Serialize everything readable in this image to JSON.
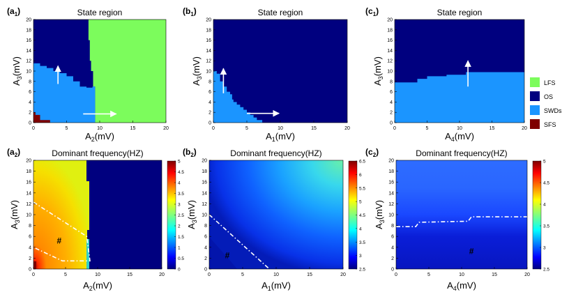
{
  "chart_data": [
    {
      "id": "a1",
      "type": "heatmap",
      "panel_label": "a",
      "panel_sub": "1",
      "title": "State region",
      "xlabel_base": "A",
      "xlabel_sub": "2",
      "xlabel_unit": "(mV)",
      "ylabel_base": "A",
      "ylabel_sub": "3",
      "ylabel_unit": "(mV)",
      "xlim": [
        0,
        20
      ],
      "ylim": [
        0,
        20
      ],
      "xticks": [
        0,
        5,
        10,
        15,
        20
      ],
      "yticks": [
        0,
        2,
        4,
        6,
        8,
        10,
        12,
        14,
        16,
        18,
        20
      ],
      "regions": [
        {
          "state": "LFS",
          "polygon": [
            [
              9.3,
              0
            ],
            [
              20,
              0
            ],
            [
              20,
              20
            ],
            [
              8.3,
              20
            ],
            [
              8.3,
              16
            ],
            [
              8.5,
              16
            ],
            [
              8.5,
              12
            ],
            [
              8.7,
              12
            ],
            [
              8.7,
              10
            ],
            [
              9.0,
              10
            ],
            [
              9.0,
              7
            ],
            [
              9.3,
              7
            ]
          ]
        },
        {
          "state": "SWDs",
          "polygon": [
            [
              0,
              0
            ],
            [
              9.3,
              0
            ],
            [
              9.3,
              7
            ],
            [
              8.9,
              7
            ],
            [
              8.9,
              6.8
            ],
            [
              8,
              6.8
            ],
            [
              8,
              7
            ],
            [
              7,
              7
            ],
            [
              7,
              8
            ],
            [
              6,
              8
            ],
            [
              6,
              9
            ],
            [
              5,
              9
            ],
            [
              5,
              9.6
            ],
            [
              4,
              9.6
            ],
            [
              4,
              10
            ],
            [
              3,
              10
            ],
            [
              3,
              10.6
            ],
            [
              2,
              10.6
            ],
            [
              2,
              11
            ],
            [
              1,
              11
            ],
            [
              1,
              11.5
            ],
            [
              0,
              11.5
            ]
          ]
        },
        {
          "state": "SFS",
          "polygon": [
            [
              0,
              0
            ],
            [
              2.5,
              0
            ],
            [
              2.5,
              0.5
            ],
            [
              1,
              0.5
            ],
            [
              1,
              1.5
            ],
            [
              0.3,
              1.5
            ],
            [
              0.3,
              2
            ],
            [
              0,
              2
            ]
          ]
        }
      ],
      "arrows": [
        {
          "from": [
            3.7,
            7.5
          ],
          "to": [
            3.7,
            11
          ]
        },
        {
          "from": [
            7.5,
            1.7
          ],
          "to": [
            12.5,
            1.7
          ]
        }
      ]
    },
    {
      "id": "b1",
      "type": "heatmap",
      "panel_label": "b",
      "panel_sub": "1",
      "title": "State region",
      "xlabel_base": "A",
      "xlabel_sub": "1",
      "xlabel_unit": "(mV)",
      "ylabel_base": "A",
      "ylabel_sub": "3",
      "ylabel_unit": "(mV)",
      "xlim": [
        0,
        20
      ],
      "ylim": [
        0,
        20
      ],
      "xticks": [
        0,
        5,
        10,
        15,
        20
      ],
      "yticks": [
        0,
        2,
        4,
        6,
        8,
        10,
        12,
        14,
        16,
        18,
        20
      ],
      "regions": [
        {
          "state": "SWDs",
          "polygon": [
            [
              0,
              0
            ],
            [
              7.3,
              0
            ],
            [
              7.3,
              0.5
            ],
            [
              6.5,
              0.5
            ],
            [
              6.5,
              1
            ],
            [
              6,
              1
            ],
            [
              6,
              1.5
            ],
            [
              5.5,
              1.5
            ],
            [
              5.5,
              2
            ],
            [
              5,
              2
            ],
            [
              5,
              2.5
            ],
            [
              4.5,
              2.5
            ],
            [
              4.5,
              3
            ],
            [
              4,
              3
            ],
            [
              4,
              3.5
            ],
            [
              3.5,
              3.5
            ],
            [
              3.5,
              4
            ],
            [
              3,
              4
            ],
            [
              3,
              4.5
            ],
            [
              2.8,
              4.5
            ],
            [
              2.8,
              5.5
            ],
            [
              2.5,
              5.5
            ],
            [
              2.5,
              6
            ],
            [
              2,
              6
            ],
            [
              2,
              7
            ],
            [
              1.5,
              7
            ],
            [
              1.5,
              8
            ],
            [
              1,
              8
            ],
            [
              1,
              9.5
            ],
            [
              0.5,
              9.5
            ],
            [
              0.5,
              10
            ],
            [
              0,
              10
            ]
          ]
        }
      ],
      "arrows": [
        {
          "from": [
            1.5,
            5.7
          ],
          "to": [
            1.5,
            10.5
          ]
        },
        {
          "from": [
            5,
            1.8
          ],
          "to": [
            9.8,
            1.8
          ]
        }
      ]
    },
    {
      "id": "c1",
      "type": "heatmap",
      "panel_label": "c",
      "panel_sub": "1",
      "title": "State region",
      "xlabel_base": "A",
      "xlabel_sub": "4",
      "xlabel_unit": "(mV)",
      "ylabel_base": "A",
      "ylabel_sub": "3",
      "ylabel_unit": "(mV)",
      "xlim": [
        0,
        20
      ],
      "ylim": [
        0,
        20
      ],
      "xticks": [
        0,
        5,
        10,
        15,
        20
      ],
      "yticks": [
        0,
        2,
        4,
        6,
        8,
        10,
        12,
        14,
        16,
        18,
        20
      ],
      "regions": [
        {
          "state": "SWDs",
          "polygon": [
            [
              0,
              0
            ],
            [
              20,
              0
            ],
            [
              20,
              9.8
            ],
            [
              11,
              9.8
            ],
            [
              11,
              9.3
            ],
            [
              8,
              9.3
            ],
            [
              8,
              9
            ],
            [
              5,
              9
            ],
            [
              5,
              8.5
            ],
            [
              3.5,
              8.5
            ],
            [
              3.5,
              7.8
            ],
            [
              0,
              7.8
            ]
          ]
        }
      ],
      "arrows": [
        {
          "from": [
            11.3,
            7
          ],
          "to": [
            11.3,
            12
          ]
        }
      ]
    },
    {
      "id": "a2",
      "type": "heatmap",
      "panel_label": "a",
      "panel_sub": "2",
      "title": "Dominant frequency(HZ)",
      "xlabel_base": "A",
      "xlabel_sub": "2",
      "xlabel_unit": "(mV)",
      "ylabel_base": "A",
      "ylabel_sub": "3",
      "ylabel_unit": "(mV)",
      "xlim": [
        0,
        20
      ],
      "ylim": [
        0,
        20
      ],
      "xticks": [
        0,
        5,
        10,
        15,
        20
      ],
      "yticks": [
        0,
        2,
        4,
        6,
        8,
        10,
        12,
        14,
        16,
        18,
        20
      ],
      "colorbar": {
        "min": 0,
        "max": 5,
        "ticks": [
          "0",
          "0.5",
          "1",
          "1.5",
          "2",
          "2.5",
          "3",
          "3.5",
          "4",
          "4.5",
          "5"
        ]
      },
      "boundary_x": 8.3,
      "hotspot": {
        "x": 0.3,
        "y": 0.6,
        "value": 4.8
      },
      "dashed_boundary": [
        [
          0,
          12.3
        ],
        [
          8.3,
          6
        ],
        [
          8.8,
          1.5
        ],
        [
          4.5,
          1.5
        ],
        [
          0,
          4
        ]
      ],
      "marker": {
        "text": "#",
        "x": 4,
        "y": 5.2
      }
    },
    {
      "id": "b2",
      "type": "heatmap",
      "panel_label": "b",
      "panel_sub": "2",
      "title": "Dominant frequency(HZ)",
      "xlabel_base": "A",
      "xlabel_sub": "1",
      "xlabel_unit": "(mV)",
      "ylabel_base": "A",
      "ylabel_sub": "3",
      "ylabel_unit": "(mV)",
      "xlim": [
        0,
        20
      ],
      "ylim": [
        0,
        20
      ],
      "xticks": [
        0,
        5,
        10,
        15,
        20
      ],
      "yticks": [
        0,
        2,
        4,
        6,
        8,
        10,
        12,
        14,
        16,
        18,
        20
      ],
      "colorbar": {
        "min": 2.5,
        "max": 6.5,
        "ticks": [
          "2.5",
          "3",
          "3.5",
          "4",
          "4.5",
          "5",
          "5.5",
          "6",
          "6.5"
        ]
      },
      "dashed_boundary": [
        [
          0,
          10
        ],
        [
          9,
          0
        ]
      ],
      "marker": {
        "text": "#",
        "x": 2.7,
        "y": 2.5
      }
    },
    {
      "id": "c2",
      "type": "heatmap",
      "panel_label": "c",
      "panel_sub": "2",
      "title": "Dominant frequency(HZ)",
      "xlabel_base": "A",
      "xlabel_sub": "4",
      "xlabel_unit": "(mV)",
      "ylabel_base": "A",
      "ylabel_sub": "3",
      "ylabel_unit": "(mV)",
      "xlim": [
        0,
        20
      ],
      "ylim": [
        0,
        20
      ],
      "xticks": [
        0,
        5,
        10,
        15,
        20
      ],
      "yticks": [
        0,
        2,
        4,
        6,
        8,
        10,
        12,
        14,
        16,
        18,
        20
      ],
      "colorbar": {
        "min": 2.5,
        "max": 5,
        "ticks": [
          "2.5",
          "3",
          "3.5",
          "4",
          "4.5",
          "5"
        ]
      },
      "dashed_boundary": [
        [
          0,
          7.8
        ],
        [
          3,
          7.8
        ],
        [
          3.5,
          8.6
        ],
        [
          11,
          8.8
        ],
        [
          11.5,
          9.6
        ],
        [
          20,
          9.6
        ]
      ],
      "marker": {
        "text": "#",
        "x": 11.5,
        "y": 3.3
      }
    }
  ],
  "legend": {
    "items": [
      {
        "label": "LFS",
        "color": "#7cfc5c"
      },
      {
        "label": "OS",
        "color": "#00007f"
      },
      {
        "label": "SWDs",
        "color": "#1b95ff"
      },
      {
        "label": "SFS",
        "color": "#7f0000"
      }
    ]
  },
  "colors": {
    "LFS": "#7cfc5c",
    "OS": "#00007f",
    "SWDs": "#1b95ff",
    "SFS": "#7f0000"
  }
}
